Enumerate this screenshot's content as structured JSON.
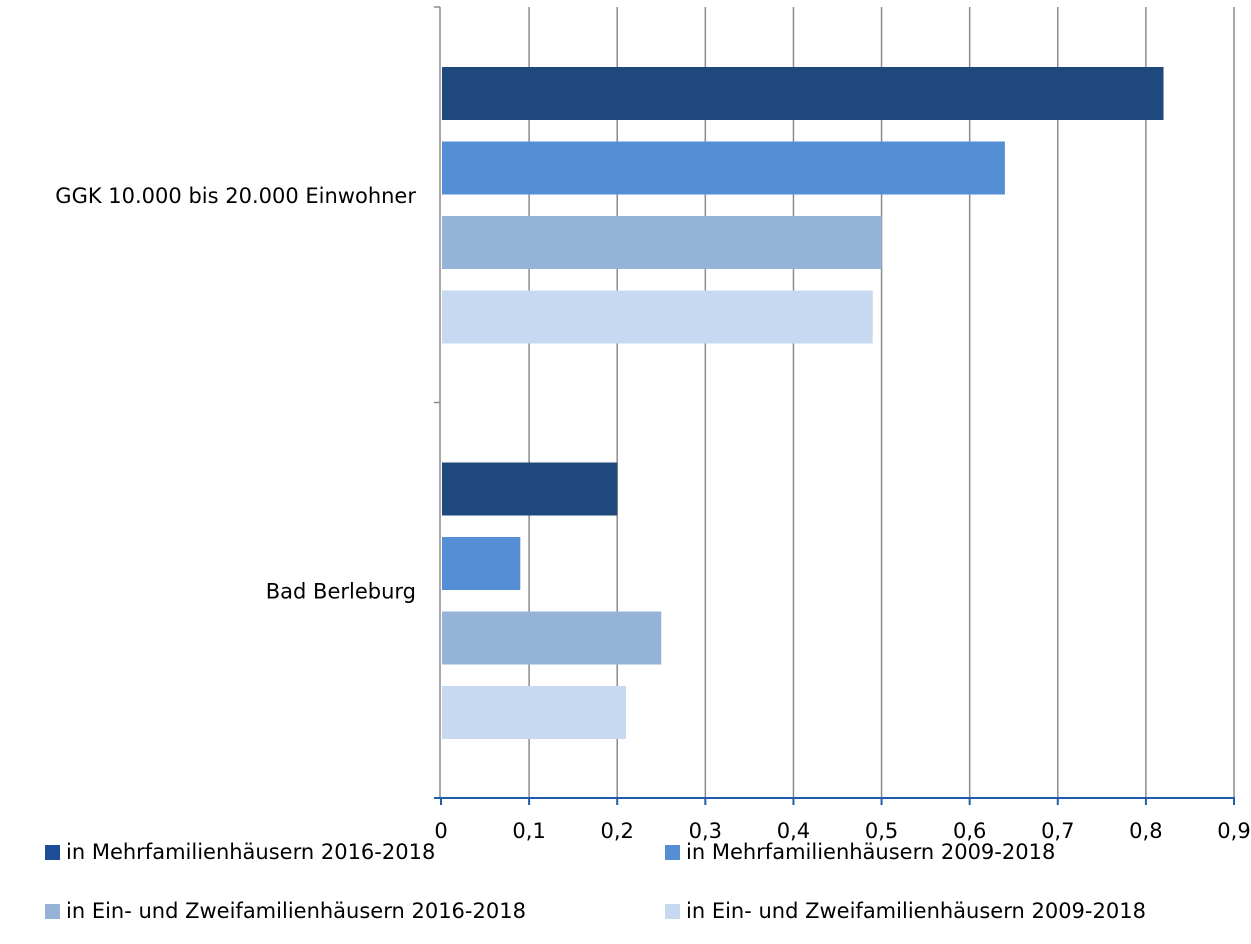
{
  "chart_data": {
    "type": "bar",
    "orientation": "horizontal",
    "categories": [
      "GGK 10.000 bis 20.000 Einwohner",
      "Bad Berleburg"
    ],
    "series": [
      {
        "name": "in Mehrfamilienhäusern 2016-2018",
        "values": [
          0.82,
          0.2
        ],
        "color": "#1f497d"
      },
      {
        "name": "in Mehrfamilienhäusern 2009-2018",
        "values": [
          0.64,
          0.09
        ],
        "color": "#558ed5"
      },
      {
        "name": "in Ein- und Zweifamilienhäusern 2016-2018",
        "values": [
          0.5,
          0.25
        ],
        "color": "#95b3d7"
      },
      {
        "name": "in Ein- und Zweifamilienhäusern 2009-2018",
        "values": [
          0.49,
          0.21
        ],
        "color": "#c6d9f1"
      }
    ],
    "x_ticks": [
      "0",
      "0,1",
      "0,2",
      "0,3",
      "0,4",
      "0,5",
      "0,6",
      "0,7",
      "0,8",
      "0,9"
    ],
    "xlim": [
      0,
      0.9
    ],
    "grid": true,
    "legend_position": "bottom",
    "legend_marker_colors": [
      "#1f4e99",
      "#558ed5",
      "#95b3d7",
      "#c6d9f1"
    ],
    "axis_color": "#1f5fa8",
    "grid_color": "#8c8c8c"
  }
}
